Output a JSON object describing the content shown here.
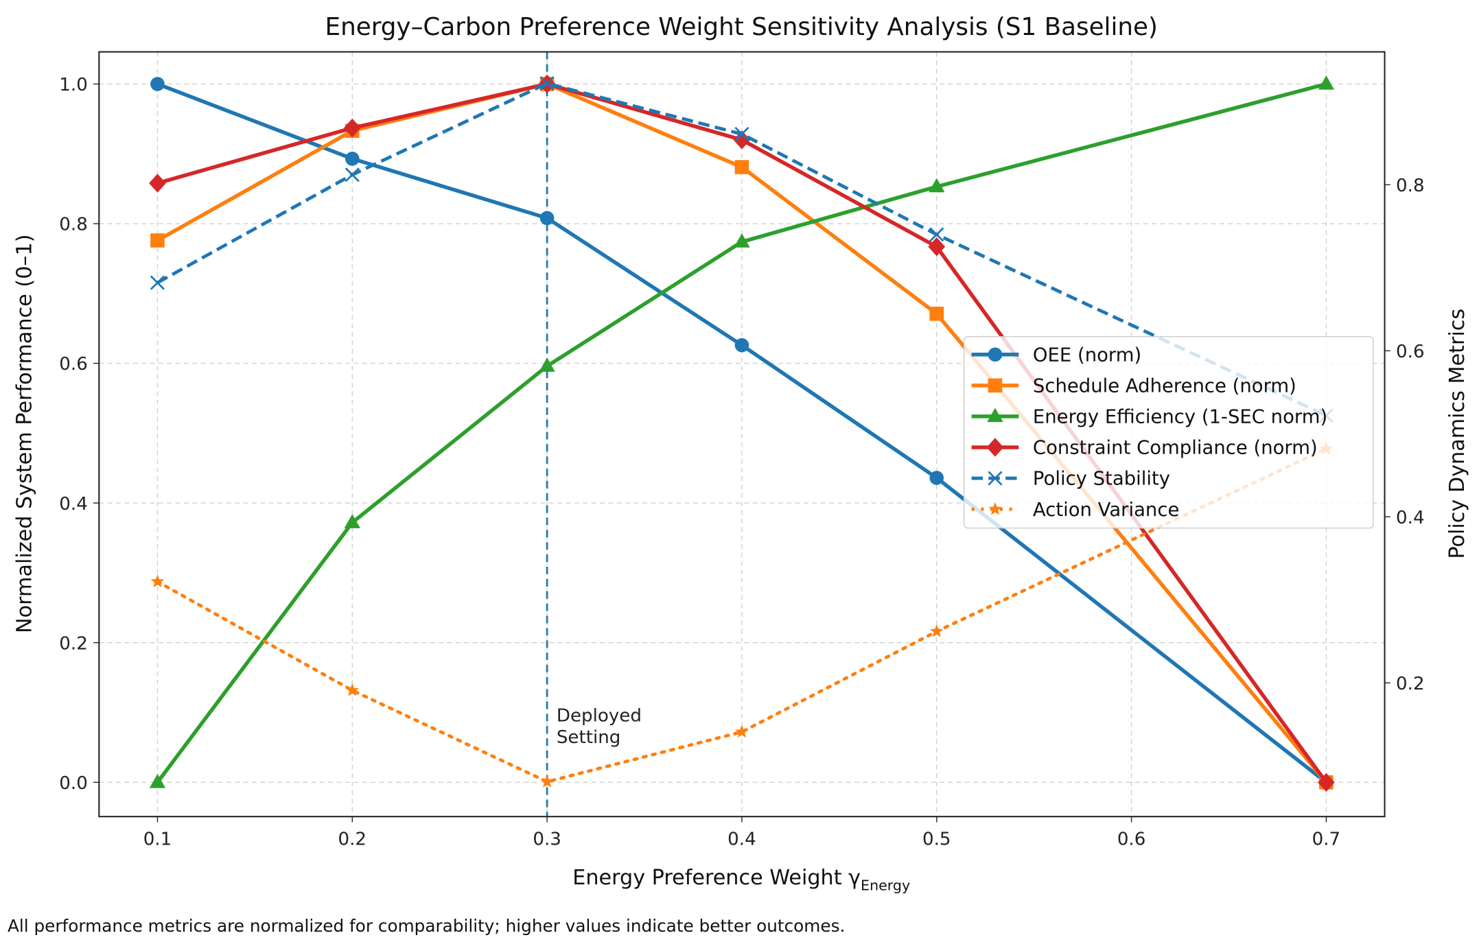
{
  "chart_data": {
    "type": "line",
    "title": "Energy–Carbon Preference Weight Sensitivity Analysis (S1 Baseline)",
    "xlabel": "Energy Preference Weight γ",
    "xlabel_subscript": "Energy",
    "ylabel": "Normalized System Performance (0–1)",
    "ylabel_right": "Policy Dynamics Metrics",
    "x": [
      0.1,
      0.2,
      0.3,
      0.4,
      0.5,
      0.7
    ],
    "xlim": [
      0.07,
      0.73
    ],
    "ylim": [
      -0.049,
      1.046
    ],
    "ylim_right": [
      0.039,
      0.96
    ],
    "xticks": [
      "0.1",
      "0.2",
      "0.3",
      "0.4",
      "0.5",
      "0.6",
      "0.7"
    ],
    "yticks": [
      "0.0",
      "0.2",
      "0.4",
      "0.6",
      "0.8",
      "1.0"
    ],
    "yticks_right": [
      "0.2",
      "0.4",
      "0.6",
      "0.8"
    ],
    "grid": true,
    "legend_placement": "center-right",
    "series": [
      {
        "name": "OEE (norm)",
        "axis": "left",
        "color": "#1f77b4",
        "marker": "circle",
        "style": "solid",
        "values": [
          1.0,
          0.893,
          0.808,
          0.626,
          0.436,
          0.0
        ]
      },
      {
        "name": "Schedule Adherence (norm)",
        "axis": "left",
        "color": "#ff7f0e",
        "marker": "square",
        "style": "solid",
        "values": [
          0.776,
          0.933,
          1.0,
          0.881,
          0.671,
          0.0
        ]
      },
      {
        "name": "Energy Efficiency (1-SEC norm)",
        "axis": "left",
        "color": "#2ca02c",
        "marker": "triangle",
        "style": "solid",
        "values": [
          0.0,
          0.372,
          0.596,
          0.774,
          0.853,
          1.0
        ]
      },
      {
        "name": "Constraint Compliance (norm)",
        "axis": "left",
        "color": "#d62728",
        "marker": "diamond",
        "style": "solid",
        "values": [
          0.858,
          0.937,
          1.0,
          0.92,
          0.767,
          0.0
        ]
      },
      {
        "name": "Policy Stability",
        "axis": "right",
        "color": "#1f77b4",
        "marker": "x",
        "style": "dashed",
        "values": [
          0.682,
          0.812,
          0.922,
          0.861,
          0.74,
          0.522
        ]
      },
      {
        "name": "Action Variance",
        "axis": "right",
        "color": "#ff7f0e",
        "marker": "star",
        "style": "dotted",
        "values": [
          0.322,
          0.191,
          0.081,
          0.141,
          0.262,
          0.482
        ]
      }
    ],
    "annotation": {
      "x": 0.3,
      "lines": [
        "Deployed",
        "Setting"
      ],
      "color": "#1f77b4"
    }
  },
  "footnote": "All performance metrics are normalized for comparability; higher values indicate better outcomes."
}
